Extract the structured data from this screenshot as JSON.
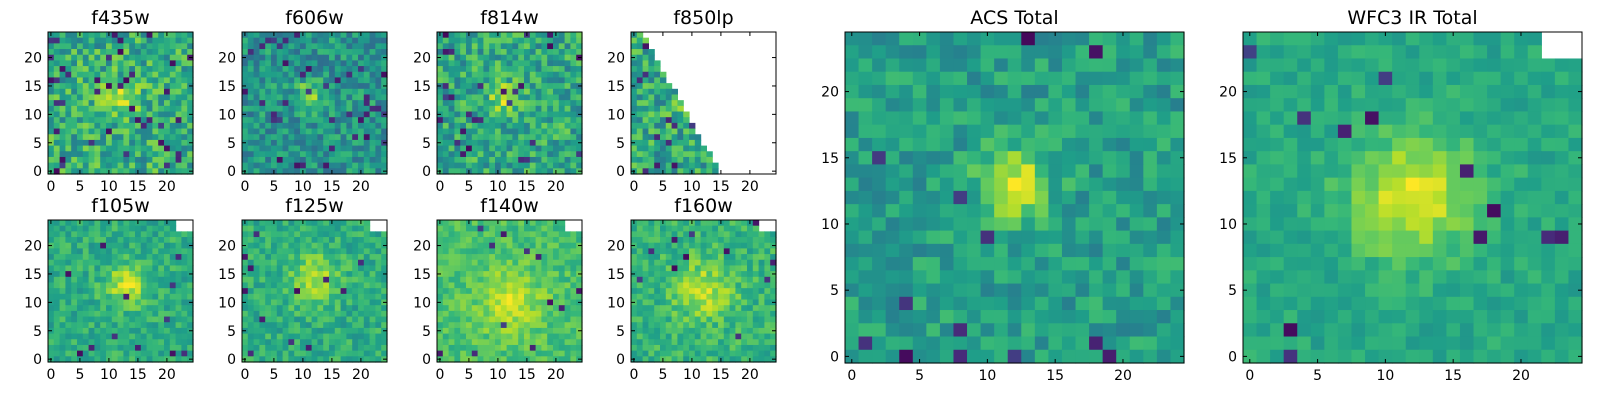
{
  "figure": {
    "colormap": "viridis",
    "background": "#ffffff"
  },
  "chart_data": [
    {
      "type": "heatmap",
      "title": "f435w",
      "grid": [
        25,
        25
      ],
      "xlim": [
        0,
        24
      ],
      "ylim": [
        0,
        24
      ],
      "xticks": [
        "0",
        "5",
        "10",
        "15",
        "20"
      ],
      "yticks": [
        "0",
        "5",
        "10",
        "15",
        "20"
      ],
      "source_center": [
        12,
        13
      ],
      "source_sigma": 2.2,
      "source_amp": 0.25,
      "base": 0.62,
      "noise": 0.2,
      "dark_rate": 0.06,
      "blank_mask": "none",
      "seed": 11
    },
    {
      "type": "heatmap",
      "title": "f606w",
      "grid": [
        25,
        25
      ],
      "xlim": [
        0,
        24
      ],
      "ylim": [
        0,
        24
      ],
      "xticks": [
        "0",
        "5",
        "10",
        "15",
        "20"
      ],
      "yticks": [
        "0",
        "5",
        "10",
        "15",
        "20"
      ],
      "source_center": [
        11,
        13
      ],
      "source_sigma": 1.7,
      "source_amp": 0.35,
      "base": 0.52,
      "noise": 0.17,
      "dark_rate": 0.05,
      "blank_mask": "none",
      "seed": 23
    },
    {
      "type": "heatmap",
      "title": "f814w",
      "grid": [
        25,
        25
      ],
      "xlim": [
        0,
        24
      ],
      "ylim": [
        0,
        24
      ],
      "xticks": [
        "0",
        "5",
        "10",
        "15",
        "20"
      ],
      "yticks": [
        "0",
        "5",
        "10",
        "15",
        "20"
      ],
      "source_center": [
        11,
        13
      ],
      "source_sigma": 1.8,
      "source_amp": 0.3,
      "base": 0.6,
      "noise": 0.19,
      "dark_rate": 0.05,
      "blank_mask": "none",
      "seed": 37
    },
    {
      "type": "heatmap",
      "title": "f850lp",
      "grid": [
        25,
        25
      ],
      "xlim": [
        0,
        24
      ],
      "ylim": [
        0,
        24
      ],
      "xticks": [
        "0",
        "5",
        "10",
        "15",
        "20"
      ],
      "yticks": [
        "0",
        "5",
        "10",
        "15",
        "20"
      ],
      "source_center": [
        10,
        12
      ],
      "source_sigma": 2.0,
      "source_amp": 0.2,
      "base": 0.6,
      "noise": 0.2,
      "dark_rate": 0.05,
      "blank_mask": "diag",
      "seed": 41
    },
    {
      "type": "heatmap",
      "title": "f105w",
      "grid": [
        25,
        25
      ],
      "xlim": [
        0,
        24
      ],
      "ylim": [
        0,
        24
      ],
      "xticks": [
        "0",
        "5",
        "10",
        "15",
        "20"
      ],
      "yticks": [
        "0",
        "5",
        "10",
        "15",
        "20"
      ],
      "source_center": [
        13,
        13
      ],
      "source_sigma": 2.5,
      "source_amp": 0.3,
      "base": 0.62,
      "noise": 0.12,
      "dark_rate": 0.02,
      "blank_mask": "corner",
      "seed": 53
    },
    {
      "type": "heatmap",
      "title": "f125w",
      "grid": [
        25,
        25
      ],
      "xlim": [
        0,
        24
      ],
      "ylim": [
        0,
        24
      ],
      "xticks": [
        "0",
        "5",
        "10",
        "15",
        "20"
      ],
      "yticks": [
        "0",
        "5",
        "10",
        "15",
        "20"
      ],
      "source_center": [
        12,
        14
      ],
      "source_sigma": 3.0,
      "source_amp": 0.28,
      "base": 0.62,
      "noise": 0.12,
      "dark_rate": 0.02,
      "blank_mask": "corner",
      "seed": 61
    },
    {
      "type": "heatmap",
      "title": "f140w",
      "grid": [
        25,
        25
      ],
      "xlim": [
        0,
        24
      ],
      "ylim": [
        0,
        24
      ],
      "xticks": [
        "0",
        "5",
        "10",
        "15",
        "20"
      ],
      "yticks": [
        "0",
        "5",
        "10",
        "15",
        "20"
      ],
      "source_center": [
        12,
        10
      ],
      "source_sigma": 4.0,
      "source_amp": 0.22,
      "base": 0.7,
      "noise": 0.1,
      "dark_rate": 0.015,
      "blank_mask": "corner",
      "seed": 71
    },
    {
      "type": "heatmap",
      "title": "f160w",
      "grid": [
        25,
        25
      ],
      "xlim": [
        0,
        24
      ],
      "ylim": [
        0,
        24
      ],
      "xticks": [
        "0",
        "5",
        "10",
        "15",
        "20"
      ],
      "yticks": [
        "0",
        "5",
        "10",
        "15",
        "20"
      ],
      "source_center": [
        12,
        12
      ],
      "source_sigma": 3.5,
      "source_amp": 0.25,
      "base": 0.65,
      "noise": 0.12,
      "dark_rate": 0.02,
      "blank_mask": "corner",
      "seed": 83
    },
    {
      "type": "heatmap",
      "title": "ACS Total",
      "grid": [
        25,
        25
      ],
      "xlim": [
        0,
        24
      ],
      "ylim": [
        0,
        24
      ],
      "xticks": [
        "0",
        "5",
        "10",
        "15",
        "20"
      ],
      "yticks": [
        "0",
        "5",
        "10",
        "15",
        "20"
      ],
      "source_center": [
        12,
        13
      ],
      "source_sigma": 1.8,
      "source_amp": 0.4,
      "base": 0.56,
      "noise": 0.13,
      "dark_rate": 0.03,
      "blank_mask": "none",
      "seed": 97
    },
    {
      "type": "heatmap",
      "title": "WFC3 IR Total",
      "grid": [
        25,
        25
      ],
      "xlim": [
        0,
        24
      ],
      "ylim": [
        0,
        24
      ],
      "xticks": [
        "0",
        "5",
        "10",
        "15",
        "20"
      ],
      "yticks": [
        "0",
        "5",
        "10",
        "15",
        "20"
      ],
      "source_center": [
        12,
        12
      ],
      "source_sigma": 3.2,
      "source_amp": 0.35,
      "base": 0.6,
      "noise": 0.08,
      "dark_rate": 0.015,
      "blank_mask": "corner",
      "seed": 101
    }
  ]
}
